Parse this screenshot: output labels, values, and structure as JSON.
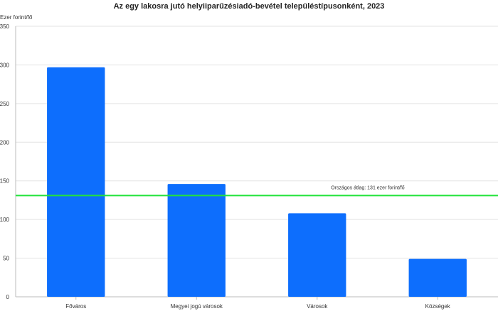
{
  "chart_data": {
    "type": "bar",
    "title": "Az egy lakosra jutó helyiiparűzésiadó-bevétel településtípusonként, 2023",
    "xlabel": "",
    "ylabel": "Ezer forint/fő",
    "categories": [
      "Főváros",
      "Megyei jogú városok",
      "Városok",
      "Községek"
    ],
    "values": [
      297,
      146,
      108,
      49
    ],
    "ylim": [
      0,
      350
    ],
    "yticks": [
      0,
      50,
      100,
      150,
      200,
      250,
      300,
      350
    ],
    "grid": true,
    "legend": "none",
    "bar_color": "#0d6efd",
    "reference_line": {
      "value": 131,
      "label": "Országos átlag: 131 ezer forint/fő",
      "color": "#22e33a"
    }
  }
}
